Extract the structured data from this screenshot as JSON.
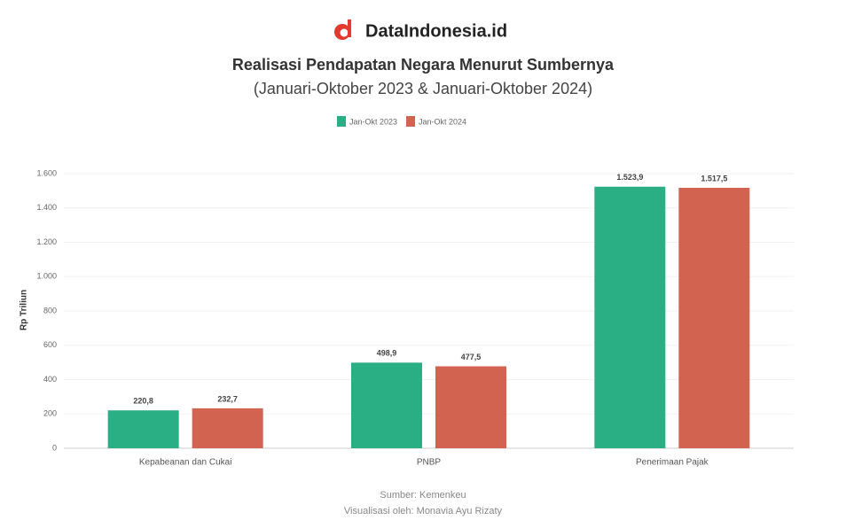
{
  "brand": "DataIndonesia.id",
  "chart_data": {
    "type": "bar",
    "title": "Realisasi Pendapatan Negara Menurut Sumbernya",
    "subtitle": "(Januari-Oktober 2023 & Januari-Oktober 2024)",
    "y_label": "Rp Triliun",
    "categories": [
      "Kepabeanan dan Cukai",
      "PNBP",
      "Penerimaan Pajak"
    ],
    "series": [
      {
        "name": "Jan-Okt 2023",
        "color": "#2aaf85",
        "values": [
          220.8,
          498.9,
          1523.9
        ],
        "value_labels": [
          "220,8",
          "498,9",
          "1.523,9"
        ]
      },
      {
        "name": "Jan-Okt 2024",
        "color": "#d26350",
        "values": [
          232.7,
          477.5,
          1517.5
        ],
        "value_labels": [
          "232,7",
          "477,5",
          "1.517,5"
        ]
      }
    ],
    "ylim": [
      0,
      1600
    ],
    "yticks": [
      0,
      200,
      400,
      600,
      800,
      {
        "value": 1000,
        "label": "1.000"
      },
      {
        "value": 1200,
        "label": "1.200"
      },
      {
        "value": 1400,
        "label": "1.400"
      },
      {
        "value": 1600,
        "label": "1.600"
      }
    ],
    "source": "Sumber: Kemenkeu",
    "credit": "Visualisasi oleh: Monavia Ayu Rizaty"
  }
}
